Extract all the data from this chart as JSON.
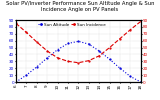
{
  "title": "Solar PV/Inverter Performance Sun Altitude Angle & Sun Incidence Angle on PV Panels",
  "legend": [
    "Sun Altitude",
    "Sun Incidence"
  ],
  "x_values": [
    6,
    7,
    8,
    9,
    10,
    11,
    12,
    13,
    14,
    15,
    16,
    17,
    18
  ],
  "altitude_values": [
    0,
    10,
    22,
    35,
    47,
    56,
    59,
    55,
    45,
    33,
    20,
    8,
    0
  ],
  "incidence_values": [
    85,
    72,
    58,
    45,
    35,
    30,
    28,
    31,
    38,
    50,
    63,
    76,
    88
  ],
  "blue_color": "#0000dd",
  "red_color": "#dd0000",
  "bg_color": "#ffffff",
  "grid_color": "#888888",
  "ylim_left": [
    0,
    90
  ],
  "ylim_right": [
    0,
    90
  ],
  "xlim": [
    6,
    18
  ],
  "xlabel_ticks": [
    6,
    7,
    8,
    9,
    10,
    11,
    12,
    13,
    14,
    15,
    16,
    17,
    18
  ],
  "yticks_left": [
    0,
    10,
    20,
    30,
    40,
    50,
    60,
    70,
    80,
    90
  ],
  "yticks_right": [
    0,
    10,
    20,
    30,
    40,
    50,
    60,
    70,
    80,
    90
  ],
  "title_fontsize": 3.8,
  "tick_fontsize": 3.0,
  "legend_fontsize": 3.0,
  "linewidth": 0.8,
  "dot_size": 1.2
}
